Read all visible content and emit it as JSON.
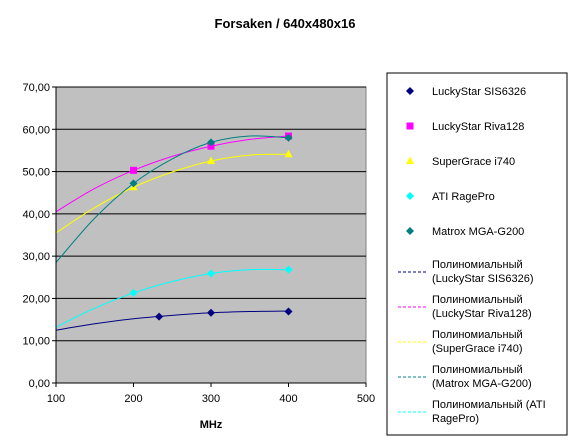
{
  "chart_data": {
    "type": "scatter",
    "title": "Forsaken / 640x480x16",
    "xlabel": "MHz",
    "ylabel": "",
    "xlim": [
      100,
      500
    ],
    "ylim": [
      0,
      70
    ],
    "x_ticks": [
      100,
      200,
      300,
      400,
      500
    ],
    "x_tick_labels": [
      "100",
      "200",
      "300",
      "400",
      "500"
    ],
    "y_ticks": [
      0,
      10,
      20,
      30,
      40,
      50,
      60,
      70
    ],
    "y_tick_labels": [
      "0,00",
      "10,00",
      "20,00",
      "30,00",
      "40,00",
      "50,00",
      "60,00",
      "70,00"
    ],
    "grid": "horizontal",
    "plot_background": "#c0c0c0",
    "legend_position": "right",
    "series": [
      {
        "name": "LuckyStar SIS6326",
        "marker": "diamond",
        "color": "#000080",
        "x": [
          233,
          300,
          400
        ],
        "y": [
          15.7,
          16.6,
          16.9
        ]
      },
      {
        "name": "LuckyStar Riva128",
        "marker": "square",
        "color": "#ff00ff",
        "x": [
          200,
          300,
          400
        ],
        "y": [
          50.3,
          56.0,
          58.4
        ]
      },
      {
        "name": "SuperGrace i740",
        "marker": "triangle",
        "color": "#ffff00",
        "x": [
          200,
          300,
          400
        ],
        "y": [
          46.3,
          52.5,
          54.1
        ]
      },
      {
        "name": "ATI RagePro",
        "marker": "diamond",
        "color": "#00ffff",
        "x": [
          200,
          300,
          400
        ],
        "y": [
          21.3,
          25.9,
          26.8
        ]
      },
      {
        "name": "Matrox MGA-G200",
        "marker": "diamond",
        "color": "#008080",
        "x": [
          200,
          300,
          400
        ],
        "y": [
          47.2,
          56.9,
          58.0
        ]
      }
    ],
    "trendlines": [
      {
        "name": "Полиномиальный (LuckyStar SIS6326)",
        "name_lines": [
          "Полиномиальный",
          "(LuckyStar SIS6326)"
        ],
        "color": "#000080",
        "x": [
          100,
          150,
          200,
          250,
          300,
          350,
          400
        ],
        "y": [
          12.5,
          14.0,
          15.2,
          16.0,
          16.6,
          16.9,
          17.0
        ]
      },
      {
        "name": "Полиномиальный (LuckyStar Riva128)",
        "name_lines": [
          "Полиномиальный",
          "(LuckyStar Riva128)"
        ],
        "color": "#ff00ff",
        "x": [
          100,
          150,
          200,
          250,
          300,
          350,
          400
        ],
        "y": [
          40.5,
          46.0,
          50.3,
          53.6,
          56.0,
          57.6,
          58.4
        ]
      },
      {
        "name": "Полиномиальный (SuperGrace i740)",
        "name_lines": [
          "Полиномиальный",
          "(SuperGrace i740)"
        ],
        "color": "#ffff00",
        "x": [
          100,
          150,
          200,
          250,
          300,
          350,
          400
        ],
        "y": [
          35.5,
          41.5,
          46.3,
          49.9,
          52.5,
          53.9,
          54.1
        ]
      },
      {
        "name": "Полиномиальный (Matrox MGA-G200)",
        "name_lines": [
          "Полиномиальный",
          "(Matrox MGA-G200)"
        ],
        "color": "#008080",
        "x": [
          100,
          150,
          200,
          250,
          300,
          350,
          400
        ],
        "y": [
          28.5,
          39.0,
          47.2,
          53.0,
          56.9,
          58.4,
          58.0
        ]
      },
      {
        "name": "Полиномиальный (ATI RagePro)",
        "name_lines": [
          "Полиномиальный (ATI",
          "RagePro)"
        ],
        "color": "#00ffff",
        "x": [
          100,
          150,
          200,
          250,
          300,
          350,
          400
        ],
        "y": [
          13.2,
          17.7,
          21.3,
          24.0,
          25.9,
          26.8,
          26.8
        ]
      }
    ]
  }
}
